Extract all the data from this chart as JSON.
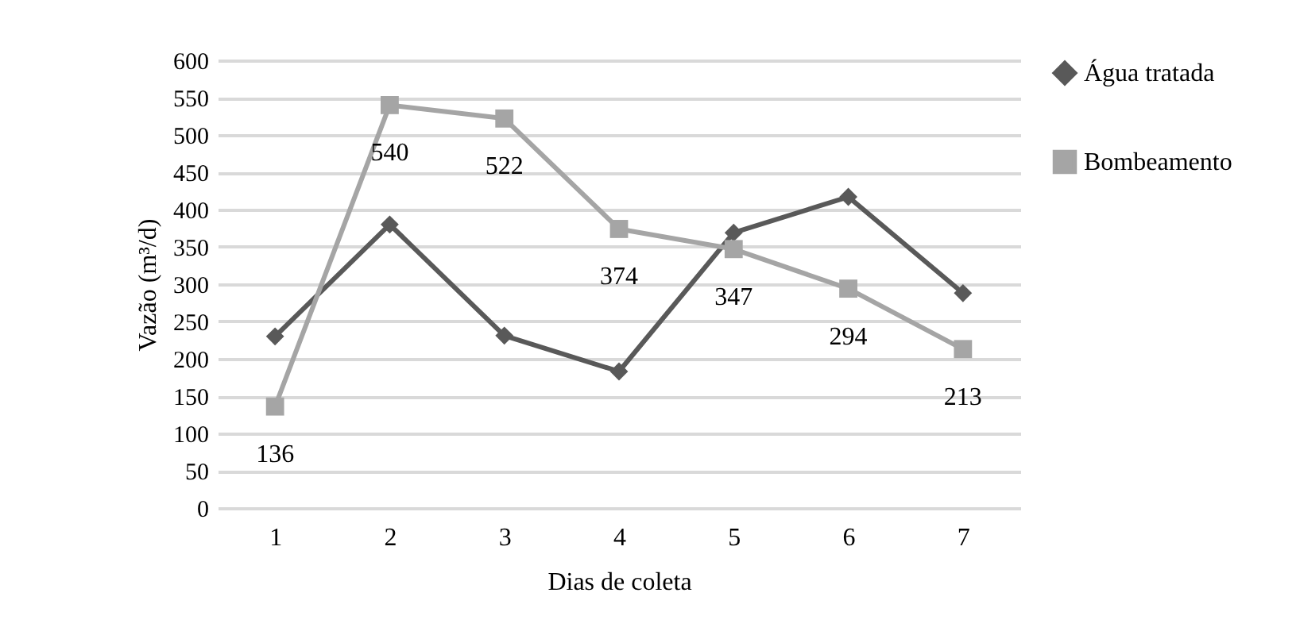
{
  "chart_data": {
    "type": "line",
    "xlabel": "Dias de coleta",
    "ylabel": "Vazão (m³/d)",
    "categories": [
      "1",
      "2",
      "3",
      "4",
      "5",
      "6",
      "7"
    ],
    "series": [
      {
        "name": "Água tratada",
        "color": "#595959",
        "marker": "diamond",
        "values": [
          230,
          380,
          231,
          183,
          369,
          417,
          288
        ]
      },
      {
        "name": "Bombeamento",
        "color": "#a5a5a5",
        "marker": "square",
        "values": [
          136,
          540,
          522,
          374,
          347,
          294,
          213
        ],
        "value_labels": [
          "136",
          "540",
          "522",
          "374",
          "347",
          "294",
          "213"
        ]
      }
    ],
    "ylim": [
      0,
      600
    ],
    "yticks": [
      0,
      50,
      100,
      150,
      200,
      250,
      300,
      350,
      400,
      450,
      500,
      550,
      600
    ],
    "grid": "y",
    "legend": "right"
  }
}
